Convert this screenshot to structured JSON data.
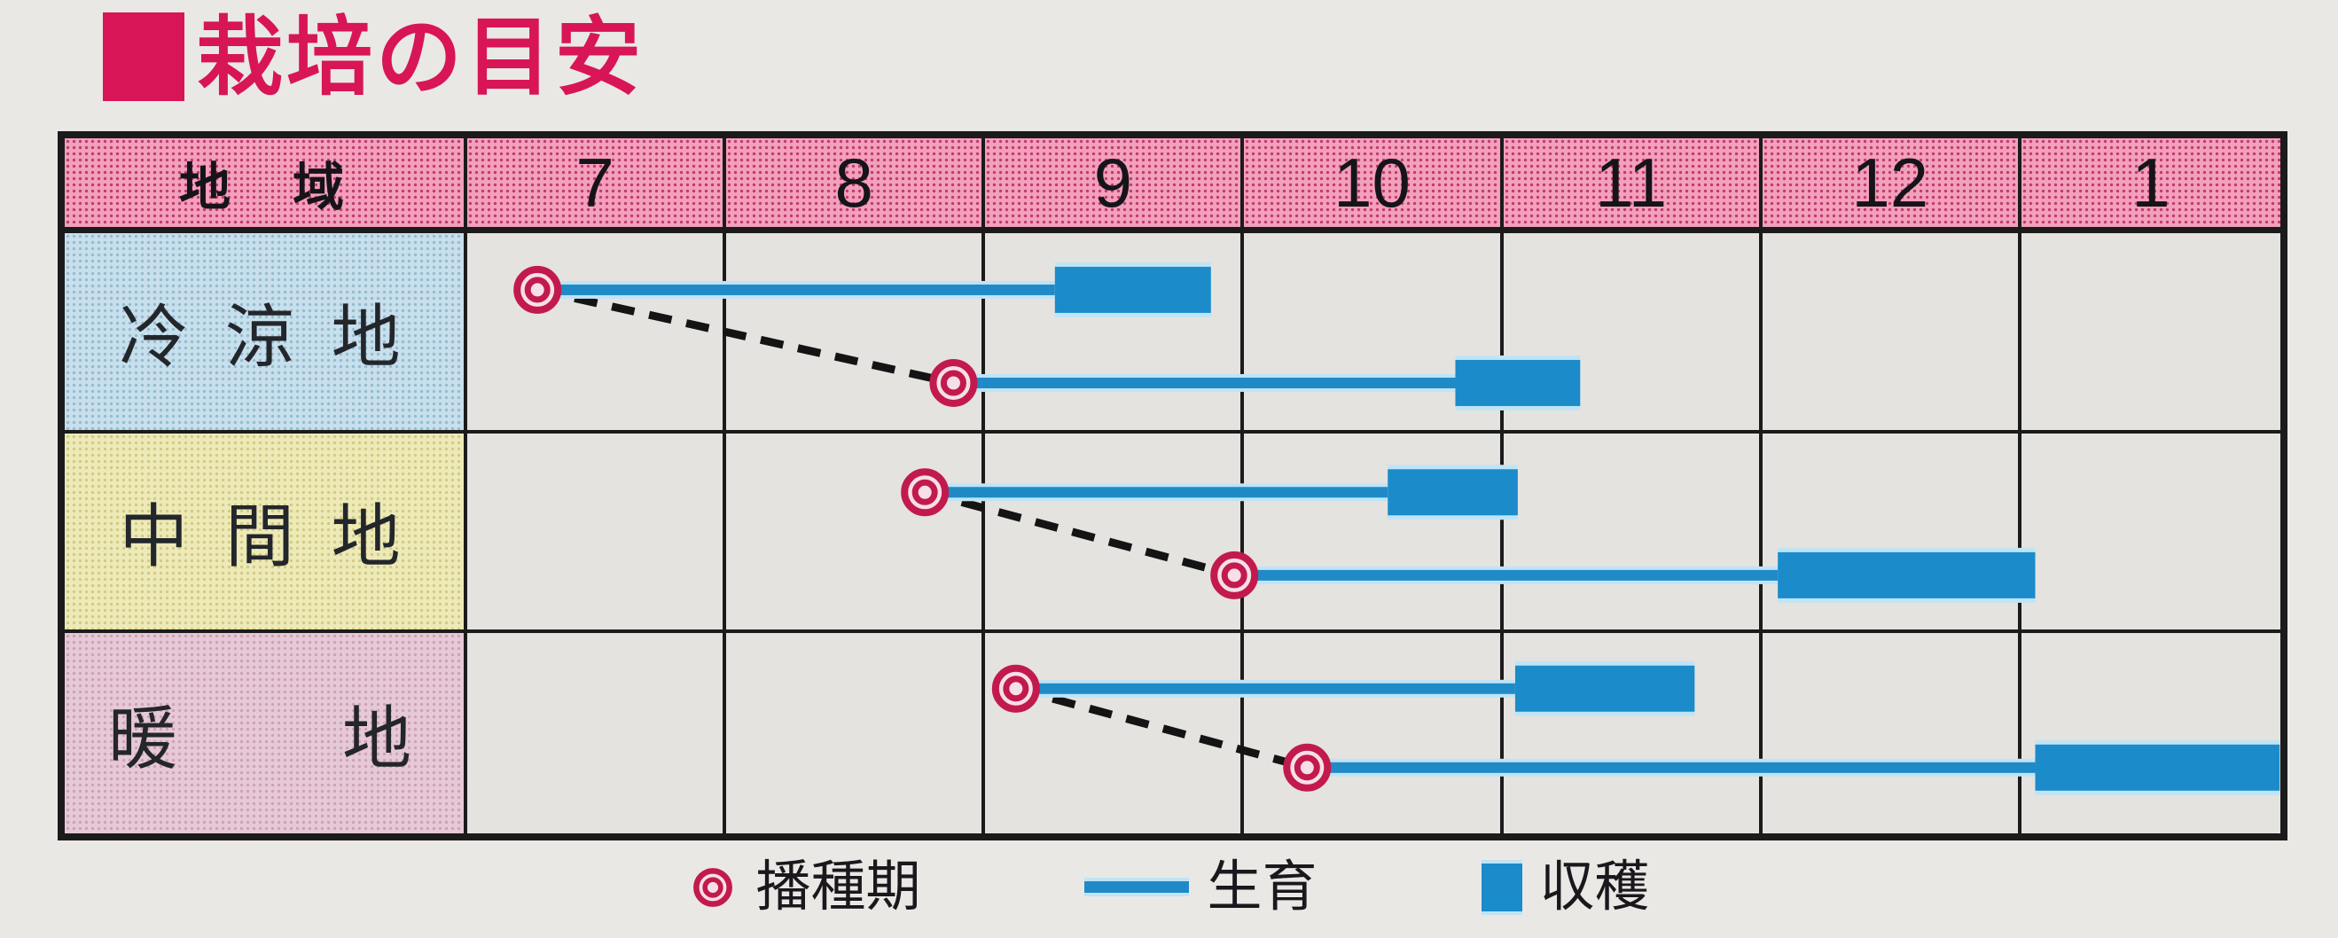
{
  "title": {
    "text": "栽培の目安"
  },
  "colors": {
    "canvas_bg": "#eae8e5",
    "cell_bg": "#e4e3e0",
    "grid": "#1b1b1b",
    "title": "#d81556",
    "header_base": "#f2a0bb",
    "header_dot": "#c23a6e",
    "bar": "#1b8bca",
    "line": "#1f8ac6",
    "halo": "#bfe4f6",
    "marker_ring": "#c21a4c",
    "marker_fill": "#f6dfe8",
    "dash": "#141414"
  },
  "chart_data": {
    "type": "gantt",
    "title": "栽培の目安",
    "region_header": "地　域",
    "months": [
      "7",
      "8",
      "9",
      "10",
      "11",
      "12",
      "1"
    ],
    "regions": [
      {
        "name": "冷涼地",
        "label": "冷 涼 地",
        "base": "#c8dfec",
        "dot": "#93bcd2",
        "timelines": [
          {
            "sow_month": 7.27,
            "harvest_start": 9.26,
            "harvest_end": 9.86,
            "track": 0.28
          },
          {
            "sow_month": 8.87,
            "harvest_start": 10.8,
            "harvest_end": 11.28,
            "track": 0.74
          }
        ]
      },
      {
        "name": "中間地",
        "label": "中 間 地",
        "base": "#edeab8",
        "dot": "#d2ca84",
        "timelines": [
          {
            "sow_month": 8.76,
            "harvest_start": 10.54,
            "harvest_end": 11.04,
            "track": 0.28
          },
          {
            "sow_month": 9.95,
            "harvest_start": 12.04,
            "harvest_end": 1.03,
            "track": 0.69
          }
        ]
      },
      {
        "name": "暖地",
        "label": "暖　　地",
        "base": "#e6c9d6",
        "dot": "#cfa0b9",
        "timelines": [
          {
            "sow_month": 9.11,
            "harvest_start": 11.03,
            "harvest_end": 11.72,
            "track": 0.25
          },
          {
            "sow_month": 10.23,
            "harvest_start": 1.03,
            "harvest_end": 1.97,
            "track": 0.64
          }
        ]
      }
    ],
    "legend": [
      {
        "icon": "sowing-marker",
        "label": "播種期"
      },
      {
        "icon": "growth-line",
        "label": "生育"
      },
      {
        "icon": "harvest-bar",
        "label": "収穫"
      }
    ]
  }
}
